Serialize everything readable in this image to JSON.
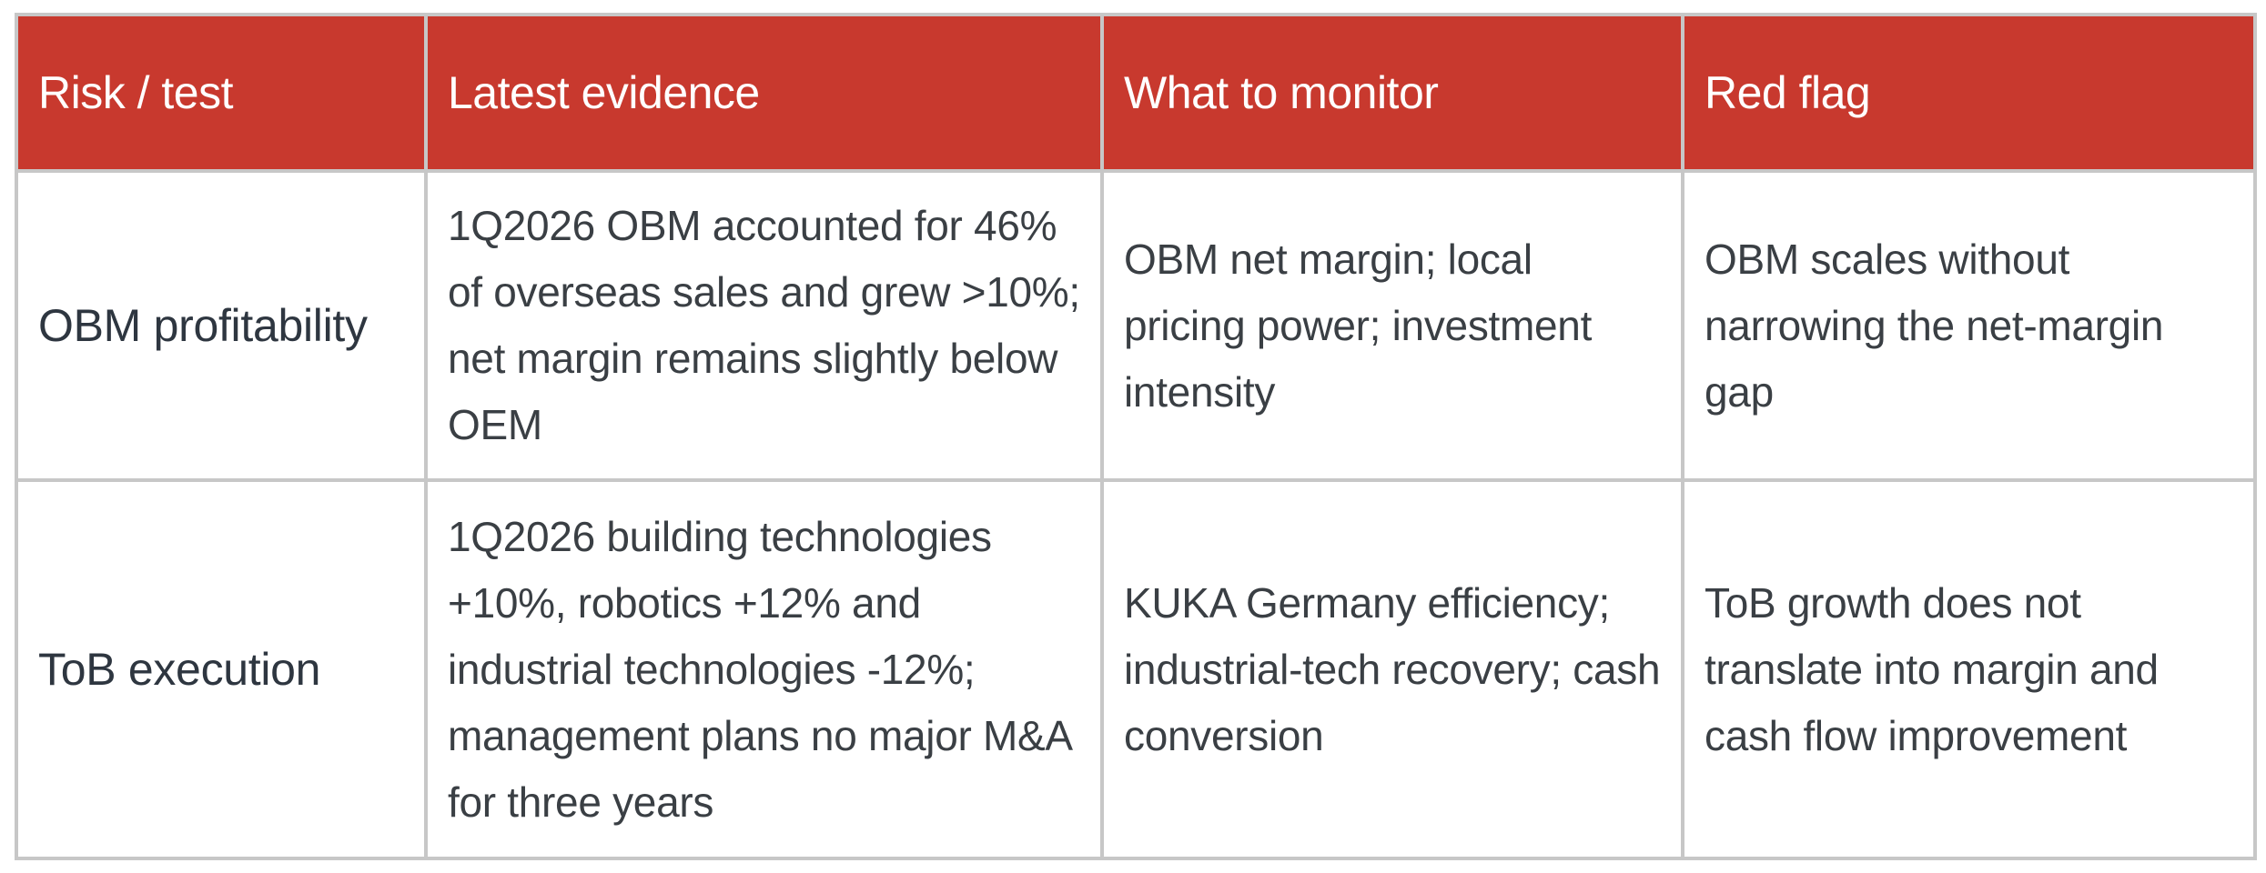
{
  "table": {
    "headers": [
      "Risk / test",
      "Latest evidence",
      "What to monitor",
      "Red flag"
    ],
    "rows": [
      {
        "risk": "OBM profitability",
        "evidence": "1Q2026 OBM accounted for 46% of overseas sales and grew >10%; net margin remains slightly below OEM",
        "monitor": "OBM net margin; local pricing power; investment intensity",
        "red_flag": "OBM scales without narrowing the net-margin gap"
      },
      {
        "risk": "ToB execution",
        "evidence": "1Q2026 building technologies +10%, robotics +12% and industrial technologies -12%; management plans no major M&A for three years",
        "monitor": "KUKA Germany efficiency; industrial-tech recovery; cash conversion",
        "red_flag": "ToB growth does not translate into margin and cash flow improvement"
      }
    ]
  },
  "colors": {
    "header_bg": "#c8392e",
    "header_text": "#ffffff",
    "grid": "#c7c7c7",
    "body_text": "#3a3f44"
  }
}
